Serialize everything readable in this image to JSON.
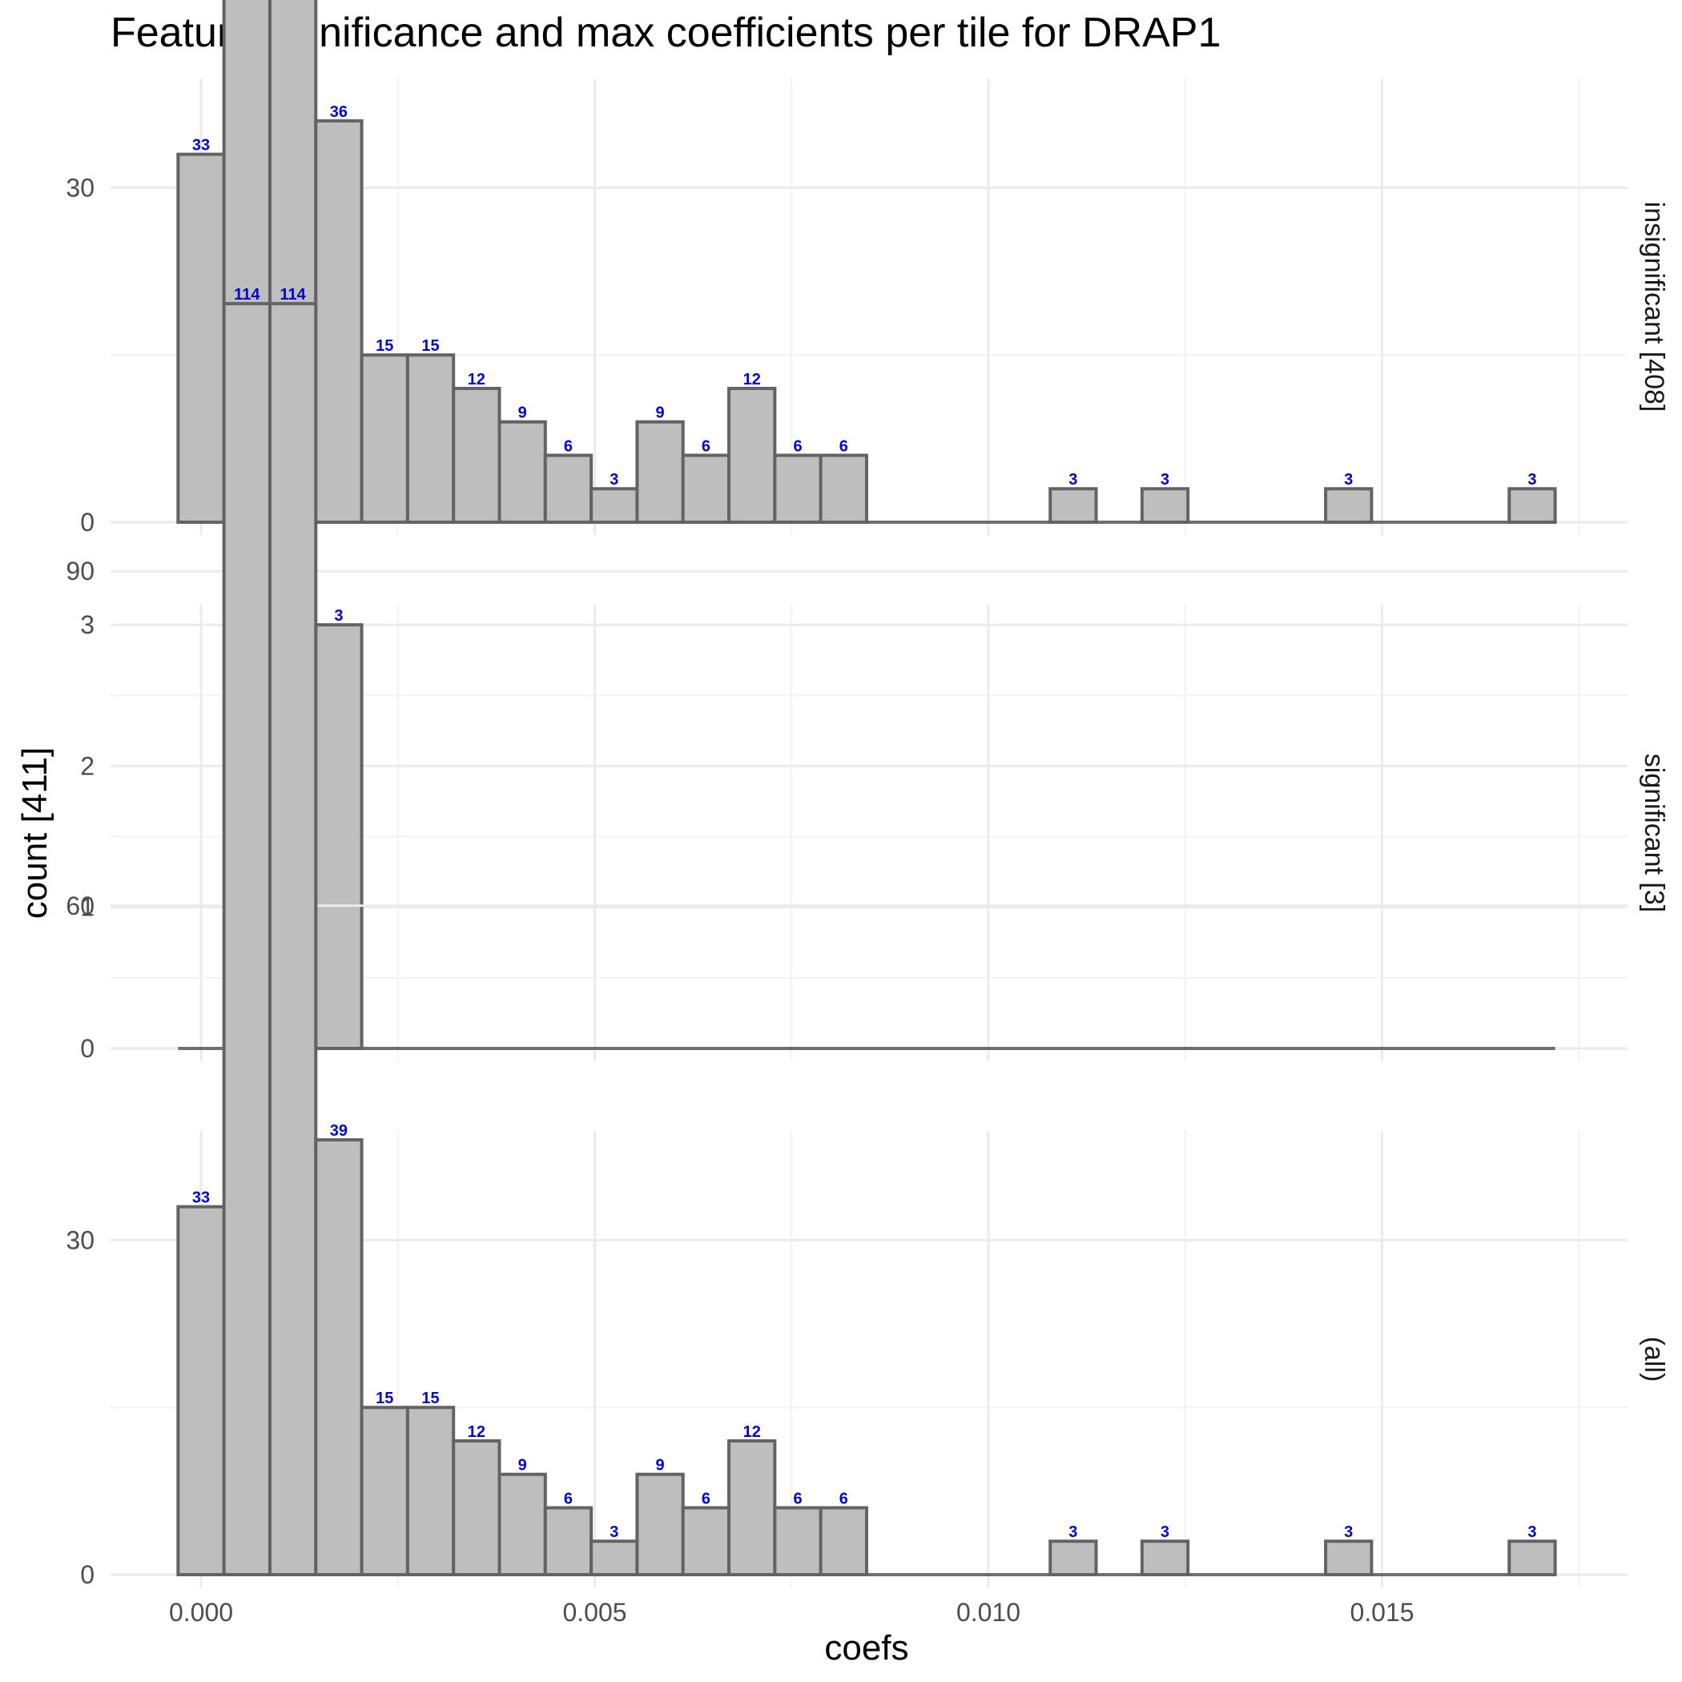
{
  "chart_data": {
    "type": "bar",
    "title": "Feature significance and max coefficients per tile for DRAP1",
    "xlabel": "coefs",
    "ylabel": "count [411]",
    "x_ticks": [
      "0.000",
      "0.005",
      "0.010",
      "0.015"
    ],
    "x_tick_values": [
      0.0,
      0.005,
      0.01,
      0.015
    ],
    "bin_width": 0.000583,
    "bin_centers": [
      0.0,
      0.000583,
      0.001166,
      0.001749,
      0.002332,
      0.002915,
      0.003498,
      0.004081,
      0.004664,
      0.005247,
      0.00583,
      0.006413,
      0.006996,
      0.007579,
      0.008162,
      0.008745,
      0.009328,
      0.009911,
      0.010494,
      0.011077,
      0.01166,
      0.012243,
      0.012826,
      0.013409,
      0.013992,
      0.014575,
      0.015158,
      0.015741,
      0.016324,
      0.016907
    ],
    "label_color": "#0000cc",
    "bar_fill": "#bebebe",
    "grid": true,
    "panels": [
      {
        "strip": "insignificant [408]",
        "ylim": [
          0,
          114
        ],
        "y_ticks": [
          0,
          30,
          60,
          90
        ],
        "values": [
          33,
          114,
          114,
          36,
          15,
          15,
          12,
          9,
          6,
          3,
          9,
          6,
          12,
          6,
          6,
          0,
          0,
          0,
          0,
          3,
          0,
          3,
          0,
          0,
          0,
          3,
          0,
          0,
          0,
          3
        ]
      },
      {
        "strip": "significant [3]",
        "ylim": [
          0,
          3
        ],
        "y_ticks": [
          0,
          1,
          2,
          3
        ],
        "values": [
          0,
          0,
          0,
          3,
          0,
          0,
          0,
          0,
          0,
          0,
          0,
          0,
          0,
          0,
          0,
          0,
          0,
          0,
          0,
          0,
          0,
          0,
          0,
          0,
          0,
          0,
          0,
          0,
          0,
          0
        ]
      },
      {
        "strip": "(all)",
        "ylim": [
          0,
          114
        ],
        "y_ticks": [
          0,
          30,
          60,
          90
        ],
        "values": [
          33,
          114,
          114,
          39,
          15,
          15,
          12,
          9,
          6,
          3,
          9,
          6,
          12,
          6,
          6,
          0,
          0,
          0,
          0,
          3,
          0,
          3,
          0,
          0,
          0,
          3,
          0,
          0,
          0,
          3
        ]
      }
    ]
  }
}
